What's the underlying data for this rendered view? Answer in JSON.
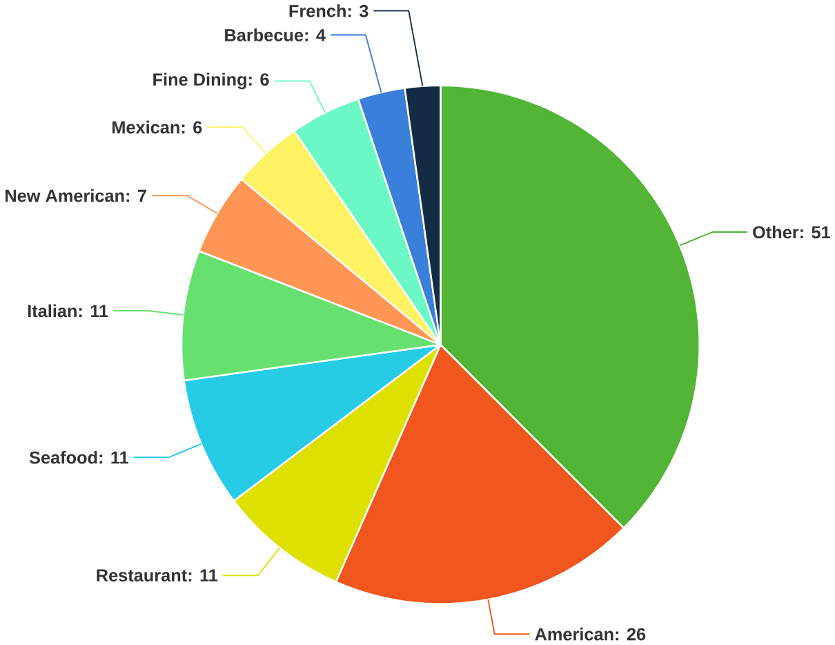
{
  "chart_data": {
    "type": "pie",
    "categories": [
      "Other",
      "American",
      "Restaurant",
      "Seafood",
      "Italian",
      "New American",
      "Mexican",
      "Fine Dining",
      "Barbecue",
      "French"
    ],
    "values": [
      51,
      26,
      11,
      11,
      11,
      7,
      6,
      6,
      4,
      3
    ],
    "value_labels": [
      ": 51",
      ": 26",
      ": 11",
      ": 11",
      ": 11",
      ": 7",
      ": 6",
      ": 6",
      ": 4",
      ": 3"
    ],
    "colors": [
      "#52b535",
      "#f0561d",
      "#dee000",
      "#26cbe6",
      "#66e06e",
      "#ff9655",
      "#fff263",
      "#6af9c4",
      "#3a7fd9",
      "#132c44"
    ]
  }
}
